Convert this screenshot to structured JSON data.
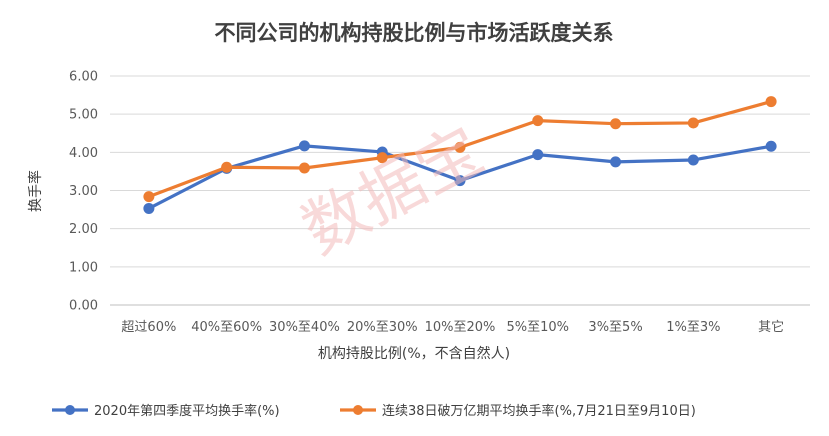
{
  "chart_data": {
    "type": "line",
    "title": "不同公司的机构持股比例与市场活跃度关系",
    "xlabel": "机构持股比例(%，不含自然人)",
    "ylabel": "换手率",
    "categories": [
      "超过60%",
      "40%至60%",
      "30%至40%",
      "20%至30%",
      "10%至20%",
      "5%至10%",
      "3%至5%",
      "1%至3%",
      "其它"
    ],
    "yticks": [
      "0.00",
      "1.00",
      "2.00",
      "3.00",
      "4.00",
      "5.00",
      "6.00"
    ],
    "ylim": [
      0,
      6
    ],
    "grid": true,
    "legend_position": "bottom",
    "series": [
      {
        "name": "2020年第四季度平均换手率(%)",
        "color": "#4472C4",
        "values": [
          2.53,
          3.58,
          4.17,
          4.01,
          3.26,
          3.94,
          3.75,
          3.8,
          4.16
        ]
      },
      {
        "name": "连续38日破万亿期平均换手率(%,7月21日至9月10日)",
        "color": "#ED7D31",
        "values": [
          2.84,
          3.61,
          3.59,
          3.86,
          4.13,
          4.83,
          4.75,
          4.77,
          5.33
        ]
      }
    ],
    "watermark": "数据宝"
  }
}
